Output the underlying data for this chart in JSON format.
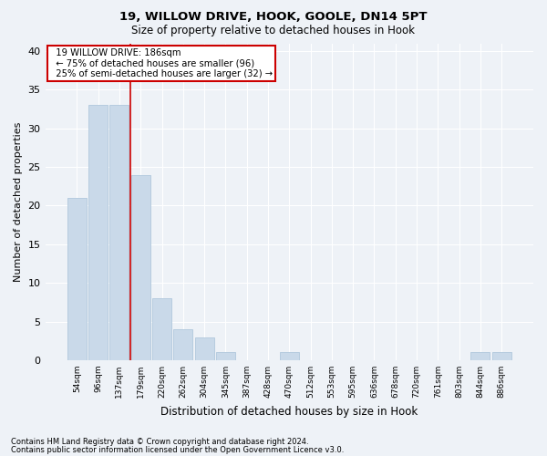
{
  "title1": "19, WILLOW DRIVE, HOOK, GOOLE, DN14 5PT",
  "title2": "Size of property relative to detached houses in Hook",
  "xlabel": "Distribution of detached houses by size in Hook",
  "ylabel": "Number of detached properties",
  "footnote1": "Contains HM Land Registry data © Crown copyright and database right 2024.",
  "footnote2": "Contains public sector information licensed under the Open Government Licence v3.0.",
  "annotation_line1": "19 WILLOW DRIVE: 186sqm",
  "annotation_line2": "← 75% of detached houses are smaller (96)",
  "annotation_line3": "25% of semi-detached houses are larger (32) →",
  "bar_labels": [
    "54sqm",
    "96sqm",
    "137sqm",
    "179sqm",
    "220sqm",
    "262sqm",
    "304sqm",
    "345sqm",
    "387sqm",
    "428sqm",
    "470sqm",
    "512sqm",
    "553sqm",
    "595sqm",
    "636sqm",
    "678sqm",
    "720sqm",
    "761sqm",
    "803sqm",
    "844sqm",
    "886sqm"
  ],
  "bar_values": [
    21,
    33,
    33,
    24,
    8,
    4,
    3,
    1,
    0,
    0,
    1,
    0,
    0,
    0,
    0,
    0,
    0,
    0,
    0,
    1,
    1
  ],
  "bar_color": "#c9d9e9",
  "bar_edge_color": "#b0c8dc",
  "vline_color": "#cc0000",
  "annotation_box_color": "#cc0000",
  "bg_color": "#eef2f7",
  "plot_bg_color": "#eef2f7",
  "grid_color": "#ffffff",
  "ylim": [
    0,
    41
  ],
  "yticks": [
    0,
    5,
    10,
    15,
    20,
    25,
    30,
    35,
    40
  ]
}
